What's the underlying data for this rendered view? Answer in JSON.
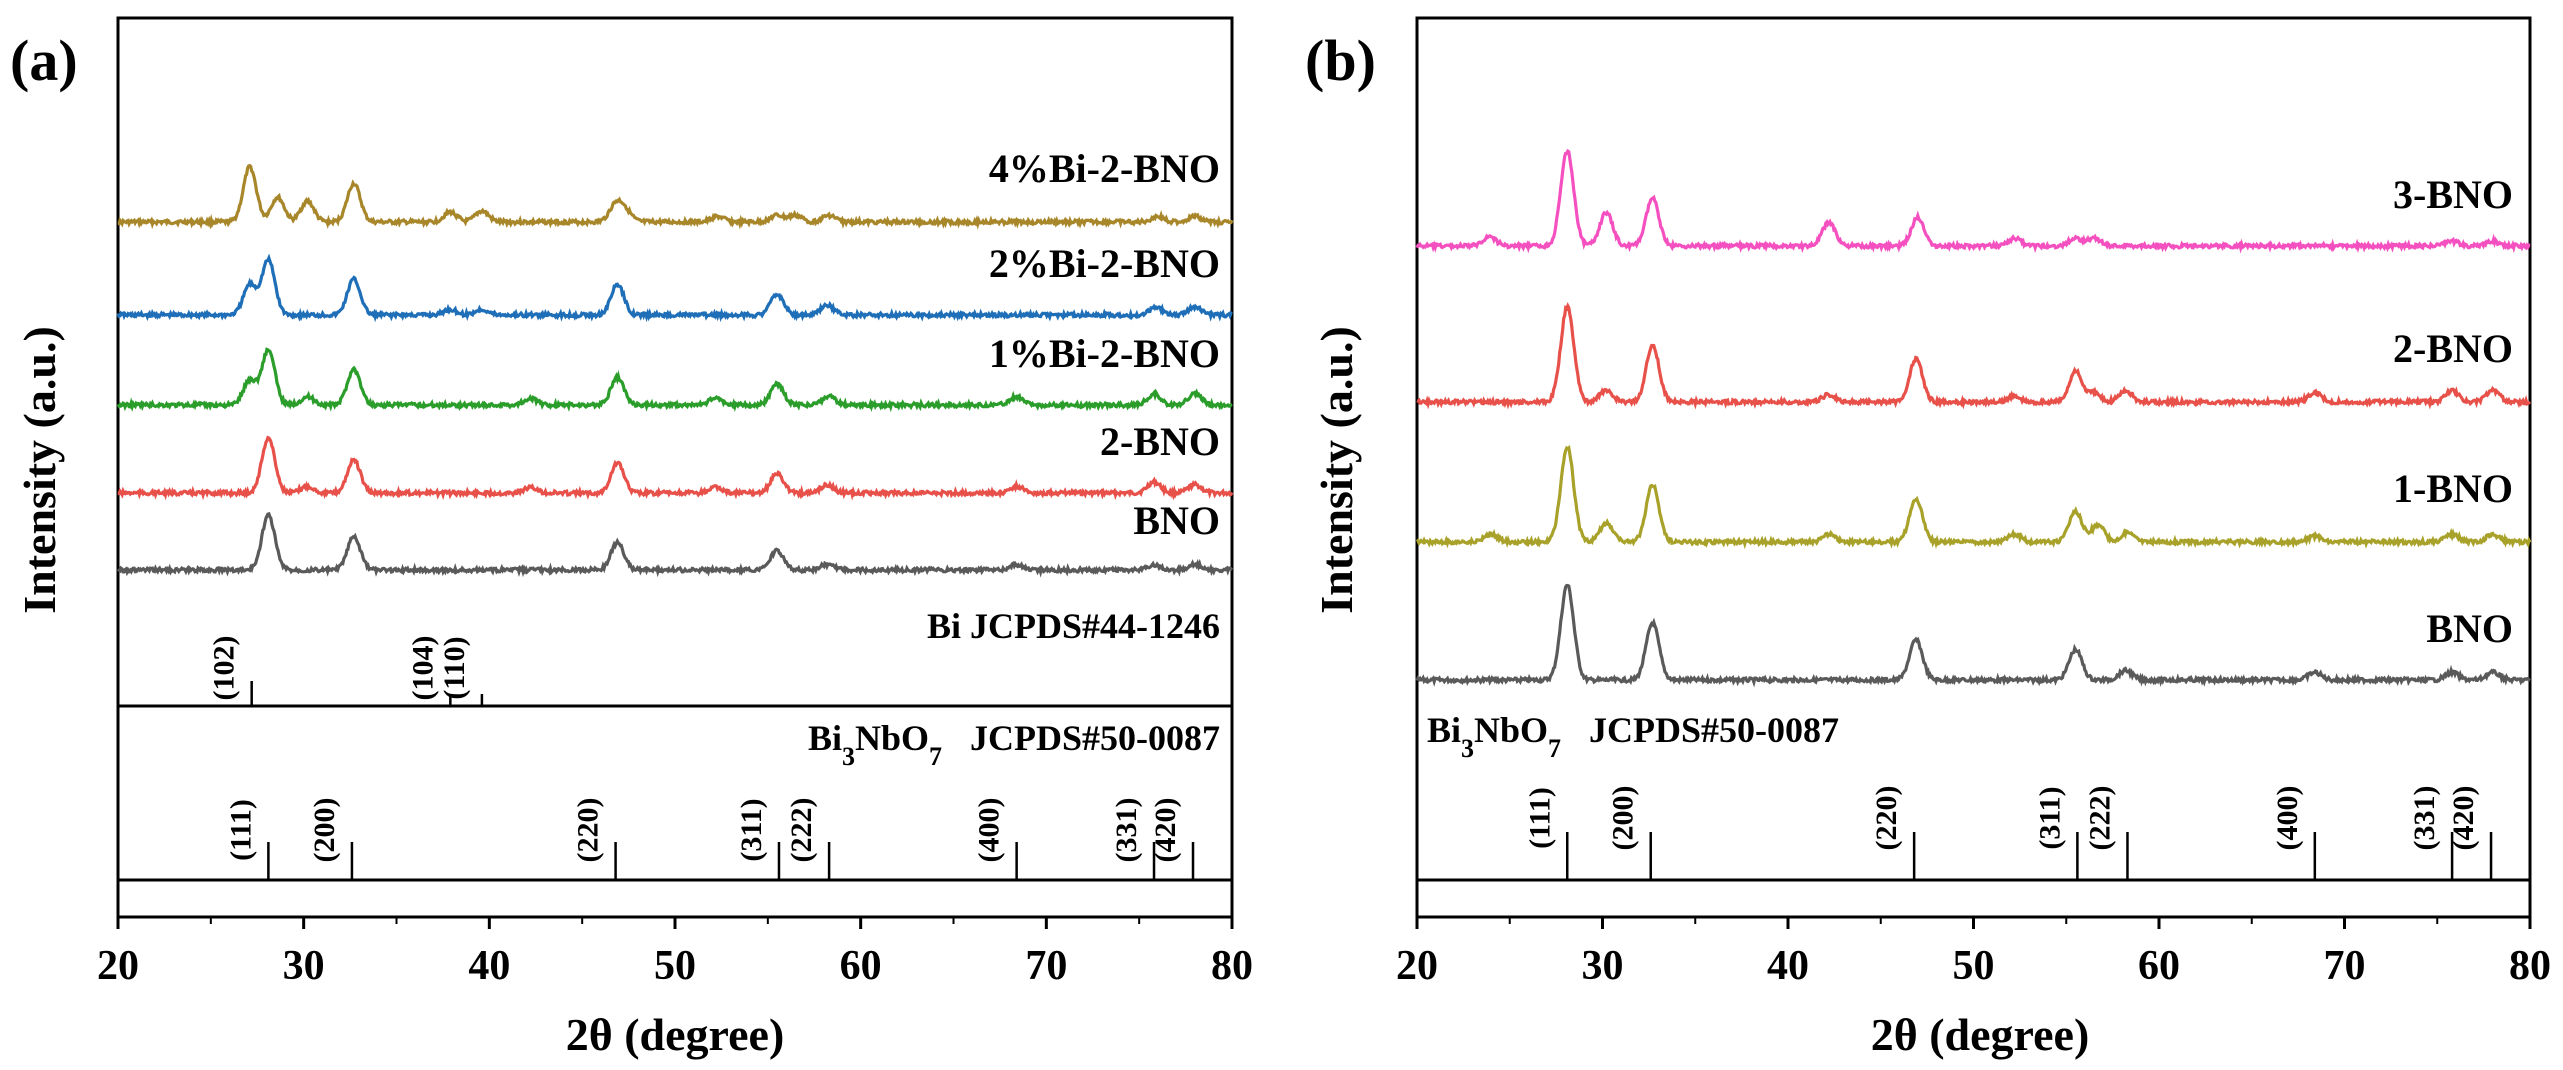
{
  "chart_data": [
    {
      "panel_label": "(a)",
      "type": "line",
      "xlabel": "2θ (degree)",
      "ylabel": "Intensity (a.u.)",
      "xlim": [
        20,
        80
      ],
      "xticks": [
        "20",
        "30",
        "40",
        "50",
        "60",
        "70",
        "80"
      ],
      "grid": false,
      "series": [
        {
          "name": "4%Bi-2-BNO",
          "color": "#a8862a",
          "peaks": [
            [
              27.1,
              1.0
            ],
            [
              28.6,
              0.45
            ],
            [
              30.2,
              0.38
            ],
            [
              32.7,
              0.7
            ],
            [
              37.9,
              0.18
            ],
            [
              39.6,
              0.2
            ],
            [
              46.8,
              0.3
            ],
            [
              47.3,
              0.2
            ],
            [
              52.3,
              0.1
            ],
            [
              55.5,
              0.12
            ],
            [
              56.5,
              0.12
            ],
            [
              58.3,
              0.12
            ],
            [
              76.0,
              0.1
            ],
            [
              78.0,
              0.1
            ]
          ]
        },
        {
          "name": "2%Bi-2-BNO",
          "color": "#1f6fb8",
          "peaks": [
            [
              27.1,
              0.55
            ],
            [
              28.1,
              1.0
            ],
            [
              32.7,
              0.65
            ],
            [
              37.9,
              0.1
            ],
            [
              39.6,
              0.1
            ],
            [
              46.9,
              0.55
            ],
            [
              55.5,
              0.38
            ],
            [
              58.2,
              0.18
            ],
            [
              75.9,
              0.15
            ],
            [
              78.0,
              0.15
            ]
          ]
        },
        {
          "name": "1%Bi-2-BNO",
          "color": "#2a9d2a",
          "peaks": [
            [
              27.1,
              0.45
            ],
            [
              28.1,
              1.0
            ],
            [
              30.2,
              0.15
            ],
            [
              32.7,
              0.65
            ],
            [
              42.2,
              0.12
            ],
            [
              46.9,
              0.5
            ],
            [
              52.2,
              0.12
            ],
            [
              55.5,
              0.38
            ],
            [
              58.3,
              0.15
            ],
            [
              68.4,
              0.15
            ],
            [
              75.8,
              0.2
            ],
            [
              78.0,
              0.2
            ]
          ]
        },
        {
          "name": "2-BNO",
          "color": "#e8504a",
          "peaks": [
            [
              28.1,
              1.0
            ],
            [
              30.2,
              0.12
            ],
            [
              32.7,
              0.6
            ],
            [
              42.2,
              0.1
            ],
            [
              46.9,
              0.55
            ],
            [
              52.2,
              0.1
            ],
            [
              55.5,
              0.35
            ],
            [
              58.2,
              0.15
            ],
            [
              68.4,
              0.12
            ],
            [
              75.8,
              0.2
            ],
            [
              78.0,
              0.15
            ]
          ]
        },
        {
          "name": "BNO",
          "color": "#5a5a5a",
          "peaks": [
            [
              28.1,
              1.0
            ],
            [
              32.7,
              0.6
            ],
            [
              46.9,
              0.5
            ],
            [
              55.5,
              0.35
            ],
            [
              58.2,
              0.1
            ],
            [
              68.4,
              0.1
            ],
            [
              75.8,
              0.1
            ],
            [
              78.0,
              0.1
            ]
          ]
        }
      ],
      "references": [
        {
          "name": "Bi JCPDS#44-1246",
          "sticks": [
            {
              "x": 27.2,
              "label": "(102)"
            },
            {
              "x": 37.9,
              "label": "(104)"
            },
            {
              "x": 39.6,
              "label": "(110)"
            }
          ]
        },
        {
          "name_main": "Bi",
          "name_sub1": "3",
          "name_mid": "NbO",
          "name_sub2": "7",
          "name_tail": "JCPDS#50-0087",
          "sticks": [
            {
              "x": 28.1,
              "label": "(111)"
            },
            {
              "x": 32.6,
              "label": "(200)"
            },
            {
              "x": 46.8,
              "label": "(220)"
            },
            {
              "x": 55.6,
              "label": "(311)"
            },
            {
              "x": 58.3,
              "label": "(222)"
            },
            {
              "x": 68.4,
              "label": "(400)"
            },
            {
              "x": 75.8,
              "label": "(331)"
            },
            {
              "x": 77.9,
              "label": "(420)"
            }
          ]
        }
      ]
    },
    {
      "panel_label": "(b)",
      "type": "line",
      "xlabel": "2θ (degree)",
      "ylabel": "Intensity (a.u.)",
      "xlim": [
        20,
        80
      ],
      "xticks": [
        "20",
        "30",
        "40",
        "50",
        "60",
        "70",
        "80"
      ],
      "grid": false,
      "series": [
        {
          "name": "3-BNO",
          "color": "#f550c0",
          "peaks": [
            [
              23.9,
              0.1
            ],
            [
              28.1,
              1.0
            ],
            [
              30.2,
              0.35
            ],
            [
              32.7,
              0.5
            ],
            [
              42.2,
              0.25
            ],
            [
              47.0,
              0.3
            ],
            [
              52.2,
              0.08
            ],
            [
              55.5,
              0.08
            ],
            [
              56.5,
              0.08
            ],
            [
              75.8,
              0.05
            ],
            [
              78.0,
              0.05
            ]
          ]
        },
        {
          "name": "2-BNO",
          "color": "#e8504a",
          "peaks": [
            [
              28.1,
              1.0
            ],
            [
              30.2,
              0.12
            ],
            [
              32.7,
              0.6
            ],
            [
              42.2,
              0.08
            ],
            [
              46.9,
              0.45
            ],
            [
              52.2,
              0.06
            ],
            [
              55.5,
              0.32
            ],
            [
              56.5,
              0.1
            ],
            [
              58.2,
              0.12
            ],
            [
              68.4,
              0.1
            ],
            [
              75.8,
              0.12
            ],
            [
              78.0,
              0.12
            ]
          ]
        },
        {
          "name": "1-BNO",
          "color": "#a8a22a",
          "peaks": [
            [
              24.0,
              0.08
            ],
            [
              28.1,
              1.0
            ],
            [
              30.2,
              0.2
            ],
            [
              32.7,
              0.6
            ],
            [
              42.2,
              0.08
            ],
            [
              46.9,
              0.45
            ],
            [
              52.2,
              0.08
            ],
            [
              55.5,
              0.32
            ],
            [
              56.7,
              0.18
            ],
            [
              58.3,
              0.1
            ],
            [
              68.4,
              0.06
            ],
            [
              75.8,
              0.08
            ],
            [
              78.0,
              0.08
            ]
          ]
        },
        {
          "name": "BNO",
          "color": "#5a5a5a",
          "peaks": [
            [
              28.1,
              1.0
            ],
            [
              32.7,
              0.6
            ],
            [
              46.9,
              0.42
            ],
            [
              55.5,
              0.32
            ],
            [
              58.2,
              0.1
            ],
            [
              68.4,
              0.08
            ],
            [
              75.8,
              0.08
            ],
            [
              78.0,
              0.08
            ]
          ]
        }
      ],
      "references": [
        {
          "name_main": "Bi",
          "name_sub1": "3",
          "name_mid": "NbO",
          "name_sub2": "7",
          "name_tail": "JCPDS#50-0087",
          "sticks": [
            {
              "x": 28.1,
              "label": "(111)"
            },
            {
              "x": 32.6,
              "label": "(200)"
            },
            {
              "x": 46.8,
              "label": "(220)"
            },
            {
              "x": 55.6,
              "label": "(311)"
            },
            {
              "x": 58.3,
              "label": "(222)"
            },
            {
              "x": 68.4,
              "label": "(400)"
            },
            {
              "x": 75.8,
              "label": "(331)"
            },
            {
              "x": 77.9,
              "label": "(420)"
            }
          ]
        }
      ]
    }
  ]
}
